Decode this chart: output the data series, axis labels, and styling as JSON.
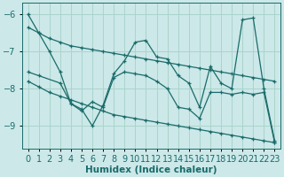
{
  "xlabel": "Humidex (Indice chaleur)",
  "bg_color": "#cce8e8",
  "line_color": "#1a6b6b",
  "grid_color": "#aad4cc",
  "xlim": [
    -0.5,
    23.5
  ],
  "ylim": [
    -9.6,
    -5.7
  ],
  "xticks": [
    0,
    1,
    2,
    3,
    4,
    5,
    6,
    7,
    8,
    9,
    10,
    11,
    12,
    13,
    14,
    15,
    16,
    17,
    18,
    19,
    20,
    21,
    22,
    23
  ],
  "yticks": [
    -9,
    -8,
    -7,
    -6
  ],
  "tick_fontsize": 7,
  "label_fontsize": 7.5,
  "series": [
    {
      "x": [
        0,
        1,
        2,
        3,
        4,
        5,
        6,
        7,
        8,
        9,
        10,
        11,
        12,
        13,
        14,
        15,
        16,
        17,
        18,
        19,
        20,
        21,
        22,
        23
      ],
      "y": [
        -6.0,
        -6.5,
        -7.0,
        -7.55,
        -8.4,
        -8.55,
        -9.0,
        -8.45,
        -7.6,
        -7.25,
        -6.75,
        -6.7,
        -7.15,
        -7.2,
        -7.65,
        -7.85,
        -8.5,
        -7.4,
        -7.85,
        -8.0,
        -6.15,
        -6.1,
        -8.0,
        -9.4
      ]
    },
    {
      "x": [
        0,
        1,
        2,
        3,
        4,
        5,
        6,
        7,
        8,
        9,
        10,
        11,
        12,
        13,
        14,
        15,
        16,
        17,
        18,
        19,
        20,
        21,
        22,
        23
      ],
      "y": [
        -6.35,
        -6.5,
        -6.65,
        -6.75,
        -6.85,
        -6.9,
        -6.95,
        -7.0,
        -7.05,
        -7.1,
        -7.15,
        -7.2,
        -7.25,
        -7.3,
        -7.35,
        -7.4,
        -7.45,
        -7.5,
        -7.55,
        -7.6,
        -7.65,
        -7.7,
        -7.75,
        -7.8
      ]
    },
    {
      "x": [
        0,
        1,
        3,
        4,
        5,
        6,
        7,
        8,
        9,
        10,
        11,
        12,
        13,
        14,
        15,
        16,
        17,
        18,
        19,
        20,
        21,
        22,
        23
      ],
      "y": [
        -7.55,
        -7.65,
        -7.85,
        -8.4,
        -8.6,
        -8.35,
        -8.5,
        -7.7,
        -7.55,
        -7.6,
        -7.65,
        -7.8,
        -8.0,
        -8.5,
        -8.55,
        -8.8,
        -8.1,
        -8.1,
        -8.15,
        -8.1,
        -8.15,
        -8.1,
        -9.45
      ]
    },
    {
      "x": [
        0,
        1,
        2,
        3,
        4,
        5,
        6,
        7,
        8,
        9,
        10,
        11,
        12,
        13,
        14,
        15,
        16,
        17,
        18,
        19,
        20,
        21,
        22,
        23
      ],
      "y": [
        -7.8,
        -7.95,
        -8.1,
        -8.2,
        -8.3,
        -8.4,
        -8.5,
        -8.6,
        -8.7,
        -8.75,
        -8.8,
        -8.85,
        -8.9,
        -8.95,
        -9.0,
        -9.05,
        -9.1,
        -9.15,
        -9.2,
        -9.25,
        -9.3,
        -9.35,
        -9.4,
        -9.45
      ]
    }
  ]
}
